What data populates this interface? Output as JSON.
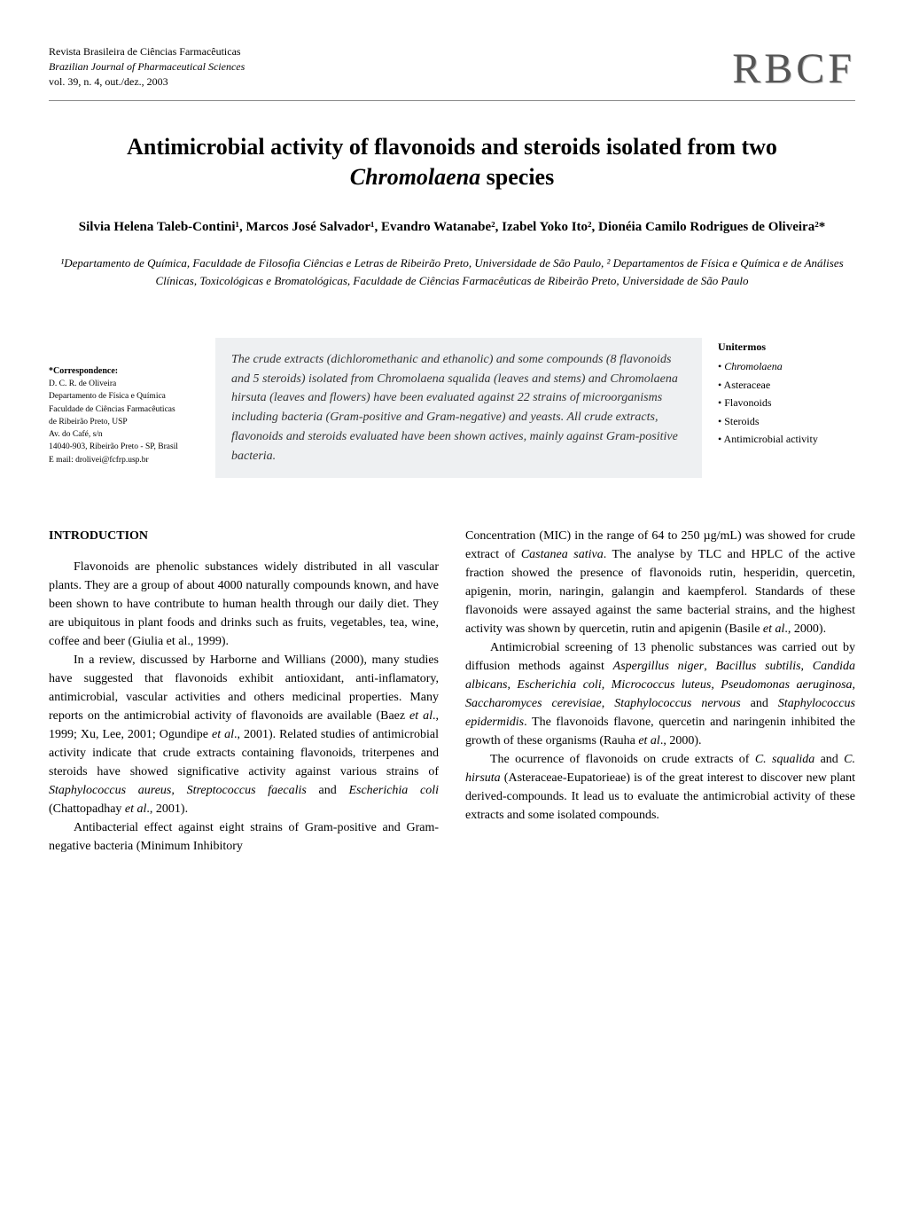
{
  "journal": {
    "line1": "Revista Brasileira de Ciências Farmacêuticas",
    "line2": "Brazilian Journal of Pharmaceutical Sciences",
    "line3": "vol. 39, n. 4, out./dez., 2003",
    "logo": "RBCF"
  },
  "title": {
    "line1": "Antimicrobial activity of flavonoids and steroids isolated from two",
    "line2_italic": "Chromolaena",
    "line2_rest": " species"
  },
  "authors": "Silvia Helena Taleb-Contini¹, Marcos José Salvador¹, Evandro Watanabe², Izabel Yoko Ito², Dionéia Camilo Rodrigues de Oliveira²*",
  "affiliations": "¹Departamento de Química, Faculdade de Filosofia Ciências e Letras de Ribeirão Preto, Universidade de São Paulo, ² Departamentos de Física e Química e de Análises Clínicas, Toxicológicas e Bromatológicas, Faculdade de Ciências Farmacêuticas de Ribeirão Preto, Universidade de São Paulo",
  "correspondence": {
    "label": "*Correspondence:",
    "line1": "D. C. R. de Oliveira",
    "line2": "Departamento de Física e Química",
    "line3": "Faculdade de Ciências Farmacêuticas",
    "line4": "de Ribeirão Preto, USP",
    "line5": "Av. do Café, s/n",
    "line6": "14040-903, Ribeirão Preto - SP, Brasil",
    "line7": "E mail: drolivei@fcfrp.usp.br"
  },
  "abstract": "The crude extracts (dichloromethanic and ethanolic) and some compounds (8 flavonoids and 5 steroids) isolated from Chromolaena squalida (leaves and stems) and Chromolaena hirsuta (leaves and flowers) have been evaluated against 22 strains of microorganisms including bacteria (Gram-positive and Gram-negative) and yeasts. All crude extracts, flavonoids and steroids evaluated have been shown actives, mainly against Gram-positive bacteria.",
  "unitermos": {
    "label": "Unitermos",
    "items": [
      {
        "text": "Chromolaena",
        "italic": true
      },
      {
        "text": "Asteraceae",
        "italic": false
      },
      {
        "text": "Flavonoids",
        "italic": false
      },
      {
        "text": "Steroids",
        "italic": false
      },
      {
        "text": "Antimicrobial activity",
        "italic": false
      }
    ]
  },
  "introduction": {
    "heading": "INTRODUCTION",
    "left": {
      "p1": "Flavonoids are phenolic substances widely distributed in all vascular plants. They are a group of about 4000 naturally compounds known, and have been shown to have contribute to human health through our daily diet. They are ubiquitous in plant foods and drinks such as fruits, vegetables, tea, wine, coffee and beer (Giulia et al., 1999).",
      "p2_a": "In a review, discussed by Harborne and Willians (2000), many studies have suggested that flavonoids exhibit antioxidant, anti-inflamatory, antimicrobial, vascular activities and others medicinal properties. Many reports on the antimicrobial activity of flavonoids are available (Baez ",
      "p2_b": "et al",
      "p2_c": "., 1999; Xu, Lee, 2001; Ogundipe ",
      "p2_d": "et al",
      "p2_e": "., 2001). Related studies of antimicrobial activity indicate that crude extracts containing flavonoids, triterpenes and steroids have showed significative activity against various strains of ",
      "p2_f": "Staphylococcus aureus, Streptococcus faecalis",
      "p2_g": " and ",
      "p2_h": "Escherichia coli",
      "p2_i": " (Chattopadhay ",
      "p2_j": "et al",
      "p2_k": "., 2001).",
      "p3": "Antibacterial effect against eight strains of Gram-positive and Gram-negative bacteria (Minimum Inhibitory"
    },
    "right": {
      "p1_a": "Concentration (MIC) in the range of 64 to 250 µg/mL) was showed for crude extract of ",
      "p1_b": "Castanea sativa",
      "p1_c": ". The analyse by TLC and HPLC of the active fraction showed the presence of flavonoids rutin, hesperidin, quercetin, apigenin, morin, naringin, galangin and kaempferol. Standards of these flavonoids were assayed against the same bacterial strains, and the highest activity was shown by quercetin, rutin and apigenin (Basile ",
      "p1_d": "et al",
      "p1_e": "., 2000).",
      "p2_a": "Antimicrobial screening of 13 phenolic substances was carried out by diffusion methods against ",
      "p2_b": "Aspergillus niger",
      "p2_c": ", ",
      "p2_d": "Bacillus subtilis",
      "p2_e": ", ",
      "p2_f": "Candida albicans",
      "p2_g": ", ",
      "p2_h": "Escherichia coli",
      "p2_i": ", ",
      "p2_j": "Micrococcus luteus",
      "p2_k": ", ",
      "p2_l": "Pseudomonas aeruginosa",
      "p2_m": ", ",
      "p2_n": "Saccharomyces cerevisiae",
      "p2_o": ", ",
      "p2_p": "Staphylococcus nervous",
      "p2_q": " and ",
      "p2_r": "Staphylococcus epidermidis",
      "p2_s": ". The flavonoids flavone, quercetin and naringenin inhibited the growth of these organisms (Rauha ",
      "p2_t": "et al",
      "p2_u": "., 2000).",
      "p3_a": "The ocurrence of flavonoids on crude extracts of ",
      "p3_b": "C. squalida",
      "p3_c": " and ",
      "p3_d": "C. hirsuta",
      "p3_e": " (Asteraceae-Eupatorieae) is of the great interest to discover new plant derived-compounds. It lead us to evaluate the antimicrobial activity of these extracts and some isolated compounds."
    }
  },
  "colors": {
    "background": "#ffffff",
    "text": "#000000",
    "abstract_bg": "#eef0f2",
    "divider": "#888888",
    "logo": "#555555"
  },
  "typography": {
    "body_fontsize": 14,
    "title_fontsize": 26,
    "authors_fontsize": 15,
    "affiliations_fontsize": 13,
    "abstract_fontsize": 14,
    "correspondence_fontsize": 9.5,
    "unitermos_fontsize": 12,
    "logo_fontsize": 48
  }
}
